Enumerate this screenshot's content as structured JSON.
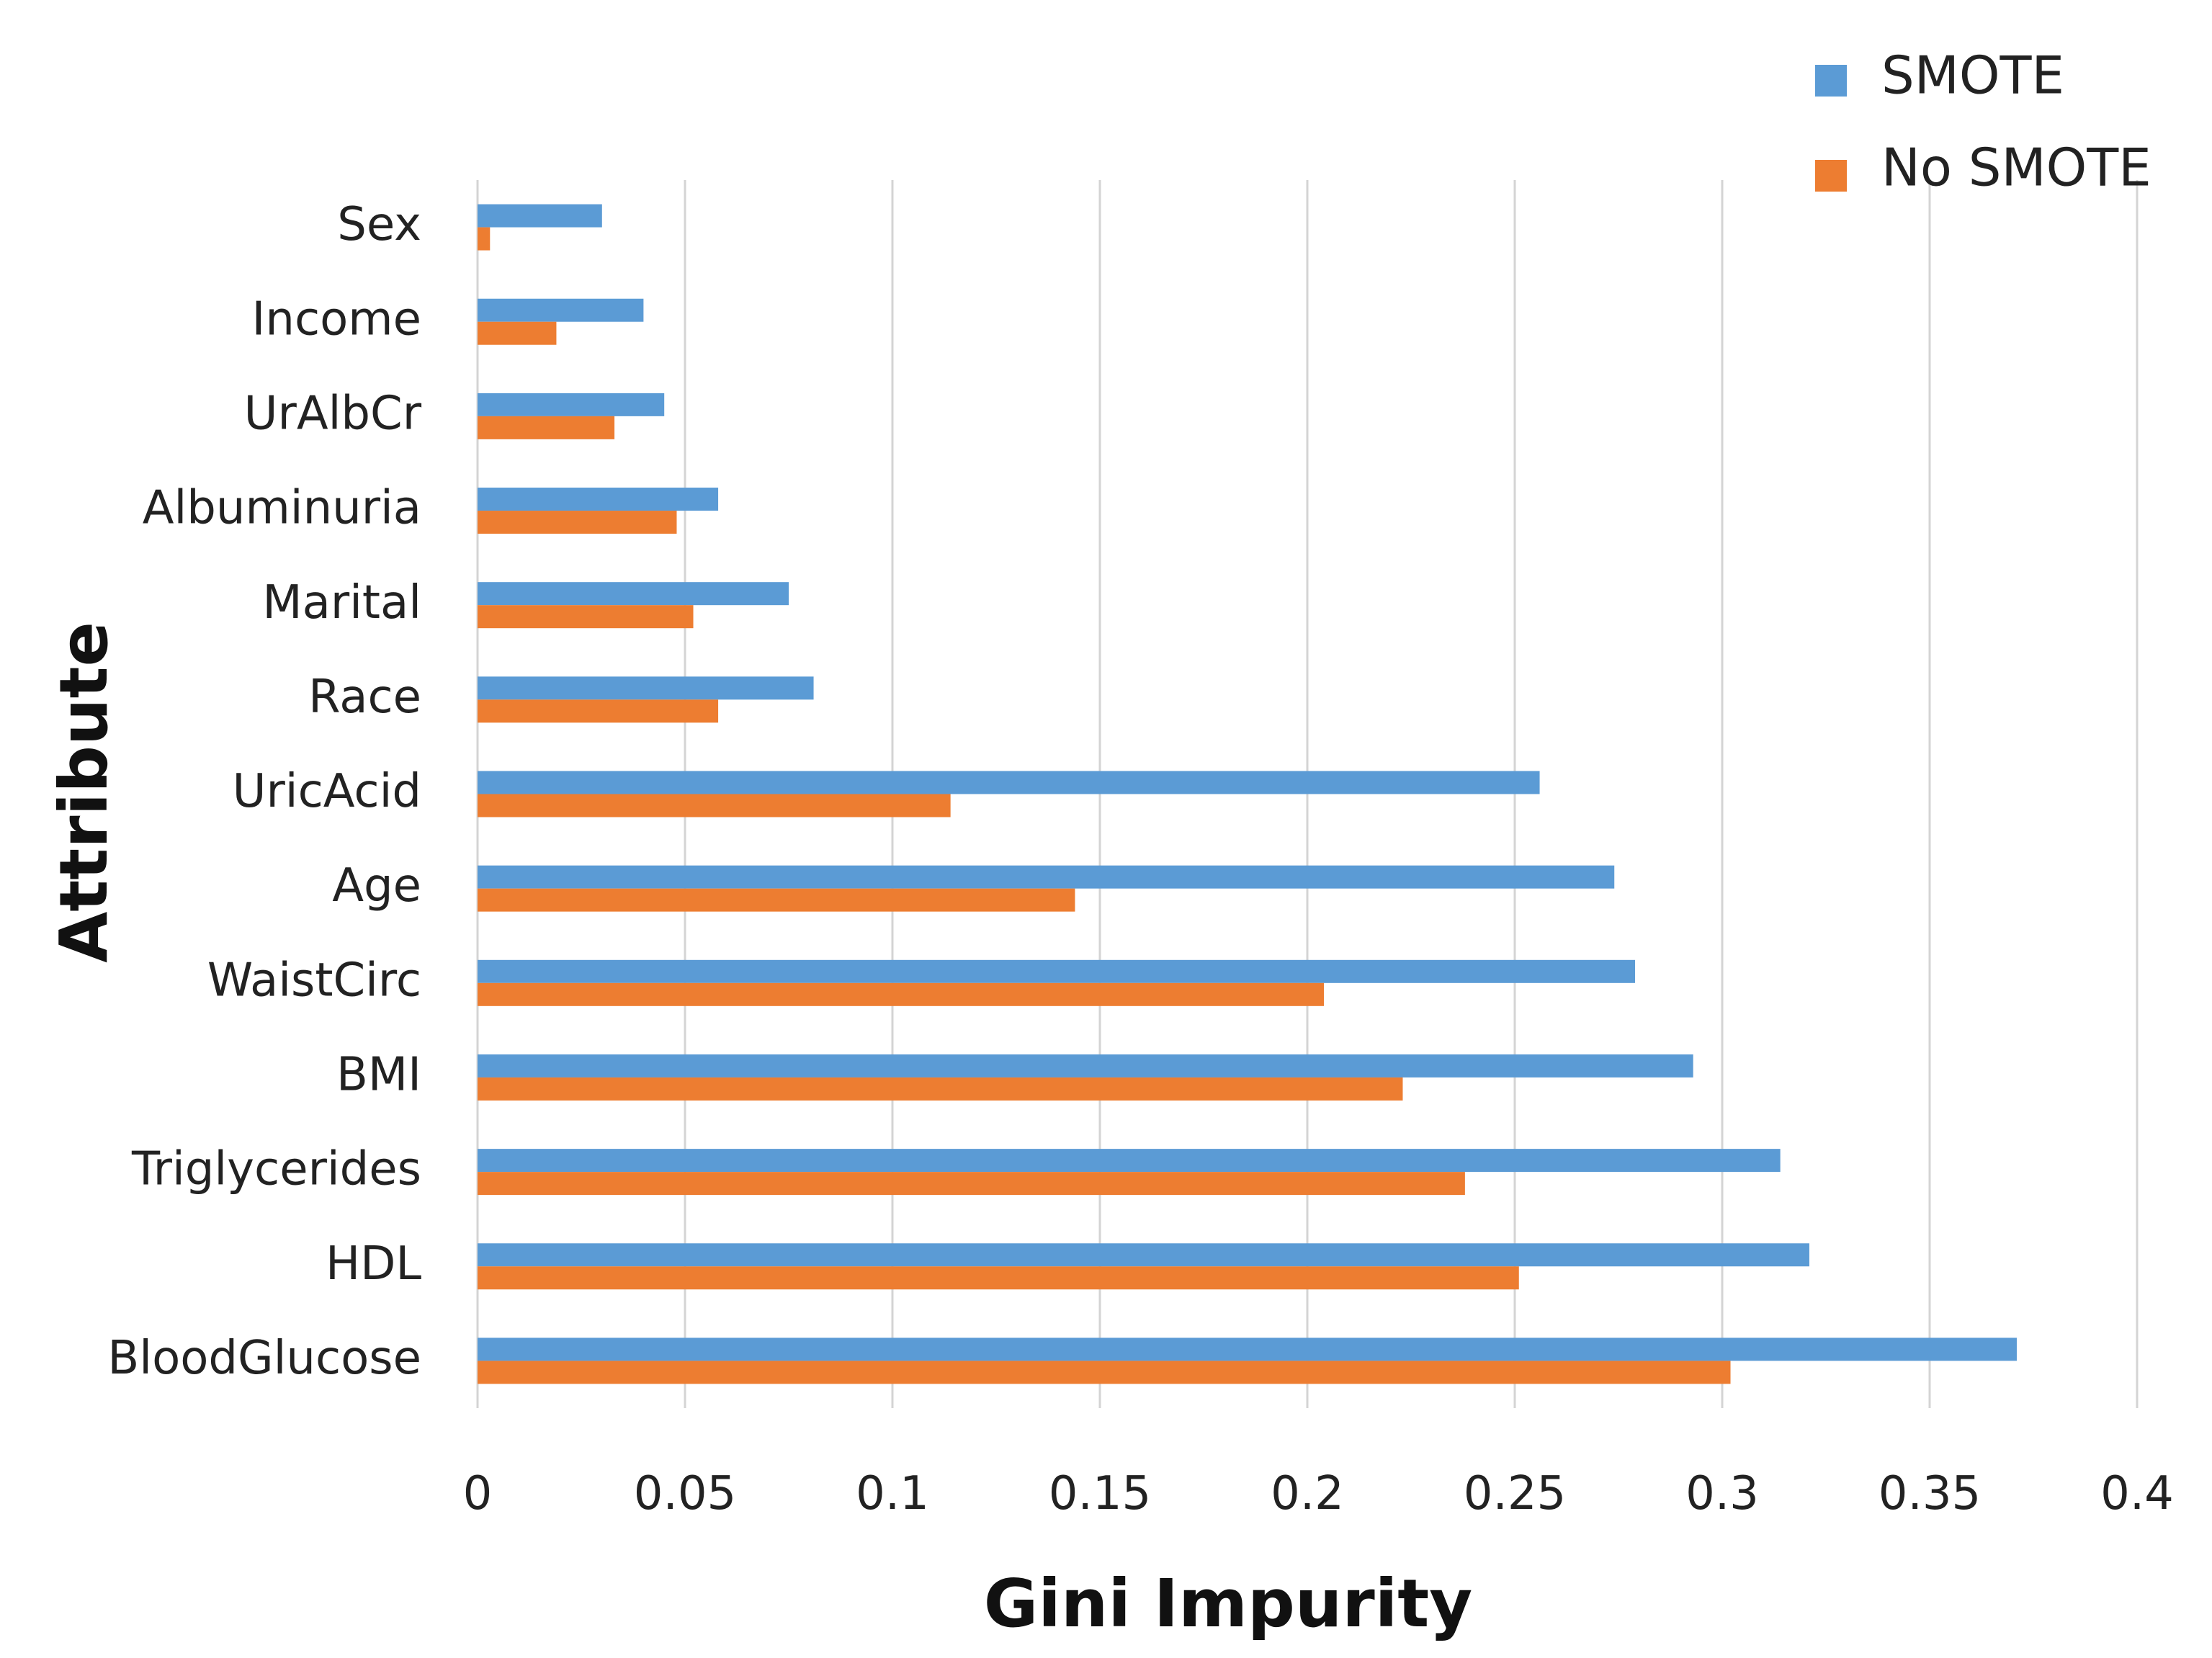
{
  "chart_data": {
    "type": "bar",
    "orientation": "horizontal",
    "title": "",
    "xlabel": "Gini Impurity",
    "ylabel": "Attribute",
    "xlim": [
      0,
      0.4
    ],
    "xticks": [
      "0",
      "0.05",
      "0.1",
      "0.15",
      "0.2",
      "0.25",
      "0.3",
      "0.35",
      "0.4"
    ],
    "grid": "vertical",
    "legend_position": "top-right",
    "categories": [
      "Sex",
      "Income",
      "UrAlbCr",
      "Albuminuria",
      "Marital",
      "Race",
      "UricAcid",
      "Age",
      "WaistCirc",
      "BMI",
      "Triglycerides",
      "HDL",
      "BloodGlucose"
    ],
    "series": [
      {
        "name": "SMOTE",
        "color": "#5b9bd5",
        "values": [
          0.03,
          0.04,
          0.045,
          0.058,
          0.075,
          0.081,
          0.256,
          0.274,
          0.279,
          0.293,
          0.314,
          0.321,
          0.371
        ]
      },
      {
        "name": "No SMOTE",
        "color": "#ed7d31",
        "values": [
          0.003,
          0.019,
          0.033,
          0.048,
          0.052,
          0.058,
          0.114,
          0.144,
          0.204,
          0.223,
          0.238,
          0.251,
          0.302
        ]
      }
    ]
  }
}
